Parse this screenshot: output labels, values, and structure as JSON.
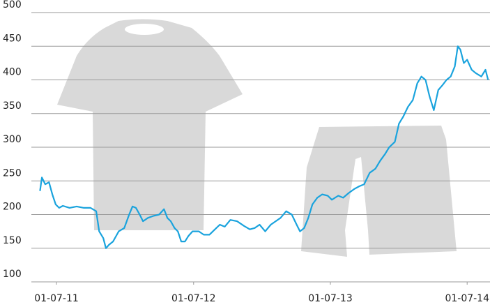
{
  "chart_data": {
    "type": "line",
    "x": [
      "2011-05-18",
      "2011-05-23",
      "2011-06-01",
      "2011-06-11",
      "2011-06-20",
      "2011-06-29",
      "2011-07-08",
      "2011-07-18",
      "2011-08-05",
      "2011-08-24",
      "2011-09-12",
      "2011-09-30",
      "2011-10-15",
      "2011-10-23",
      "2011-11-03",
      "2011-11-10",
      "2011-11-18",
      "2011-11-29",
      "2011-12-14",
      "2011-12-29",
      "2012-01-11",
      "2012-01-20",
      "2012-01-29",
      "2012-02-08",
      "2012-02-17",
      "2012-03-01",
      "2012-03-16",
      "2012-03-31",
      "2012-04-13",
      "2012-04-22",
      "2012-05-01",
      "2012-05-11",
      "2012-05-20",
      "2012-05-29",
      "2012-06-08",
      "2012-06-17",
      "2012-06-28",
      "2012-07-15",
      "2012-07-28",
      "2012-08-12",
      "2012-08-27",
      "2012-09-09",
      "2012-09-22",
      "2012-10-07",
      "2012-10-25",
      "2012-11-13",
      "2012-11-28",
      "2012-12-11",
      "2012-12-24",
      "2013-01-08",
      "2013-01-23",
      "2013-02-05",
      "2013-02-18",
      "2013-03-05",
      "2013-03-20",
      "2013-04-02",
      "2013-04-11",
      "2013-04-22",
      "2013-05-03",
      "2013-05-14",
      "2013-05-27",
      "2013-06-09",
      "2013-06-24",
      "2013-07-05",
      "2013-07-22",
      "2013-08-04",
      "2013-08-19",
      "2013-09-03",
      "2013-09-16",
      "2013-09-29",
      "2013-10-14",
      "2013-10-29",
      "2013-11-11",
      "2013-11-24",
      "2013-12-05",
      "2013-12-20",
      "2013-12-31",
      "2014-01-11",
      "2014-01-24",
      "2014-02-06",
      "2014-02-18",
      "2014-03-01",
      "2014-03-12",
      "2014-03-23",
      "2014-04-03",
      "2014-04-15",
      "2014-04-26",
      "2014-05-07",
      "2014-05-18",
      "2014-05-29",
      "2014-06-06",
      "2014-06-13",
      "2014-06-22",
      "2014-07-01",
      "2014-07-13",
      "2014-07-24",
      "2014-08-08",
      "2014-08-19",
      "2014-08-26"
    ],
    "series": [
      {
        "color": "#1aa3dd",
        "values": [
          235,
          255,
          245,
          248,
          230,
          215,
          210,
          213,
          210,
          212,
          210,
          210,
          205,
          175,
          165,
          150,
          155,
          160,
          175,
          180,
          200,
          212,
          210,
          200,
          190,
          195,
          198,
          200,
          208,
          195,
          190,
          180,
          175,
          160,
          160,
          168,
          175,
          175,
          170,
          170,
          178,
          185,
          182,
          192,
          190,
          183,
          178,
          180,
          185,
          175,
          185,
          190,
          195,
          205,
          200,
          185,
          175,
          180,
          195,
          215,
          225,
          230,
          228,
          222,
          228,
          225,
          232,
          238,
          242,
          245,
          262,
          268,
          280,
          290,
          300,
          308,
          335,
          345,
          360,
          370,
          395,
          405,
          400,
          375,
          355,
          385,
          392,
          400,
          405,
          420,
          450,
          445,
          425,
          430,
          415,
          410,
          405,
          415,
          400
        ]
      }
    ],
    "xlim": [
      "2011-04-25",
      "2014-08-31"
    ],
    "xticks": [
      {
        "value": "2011-07-01",
        "label": "01-07-11"
      },
      {
        "value": "2012-07-01",
        "label": "01-07-12"
      },
      {
        "value": "2013-07-01",
        "label": "01-07-13"
      },
      {
        "value": "2014-07-01",
        "label": "01-07-14"
      }
    ],
    "ylim": [
      100,
      500
    ],
    "yticks": [
      100,
      150,
      200,
      250,
      300,
      350,
      400,
      450,
      500
    ],
    "grid": true
  }
}
